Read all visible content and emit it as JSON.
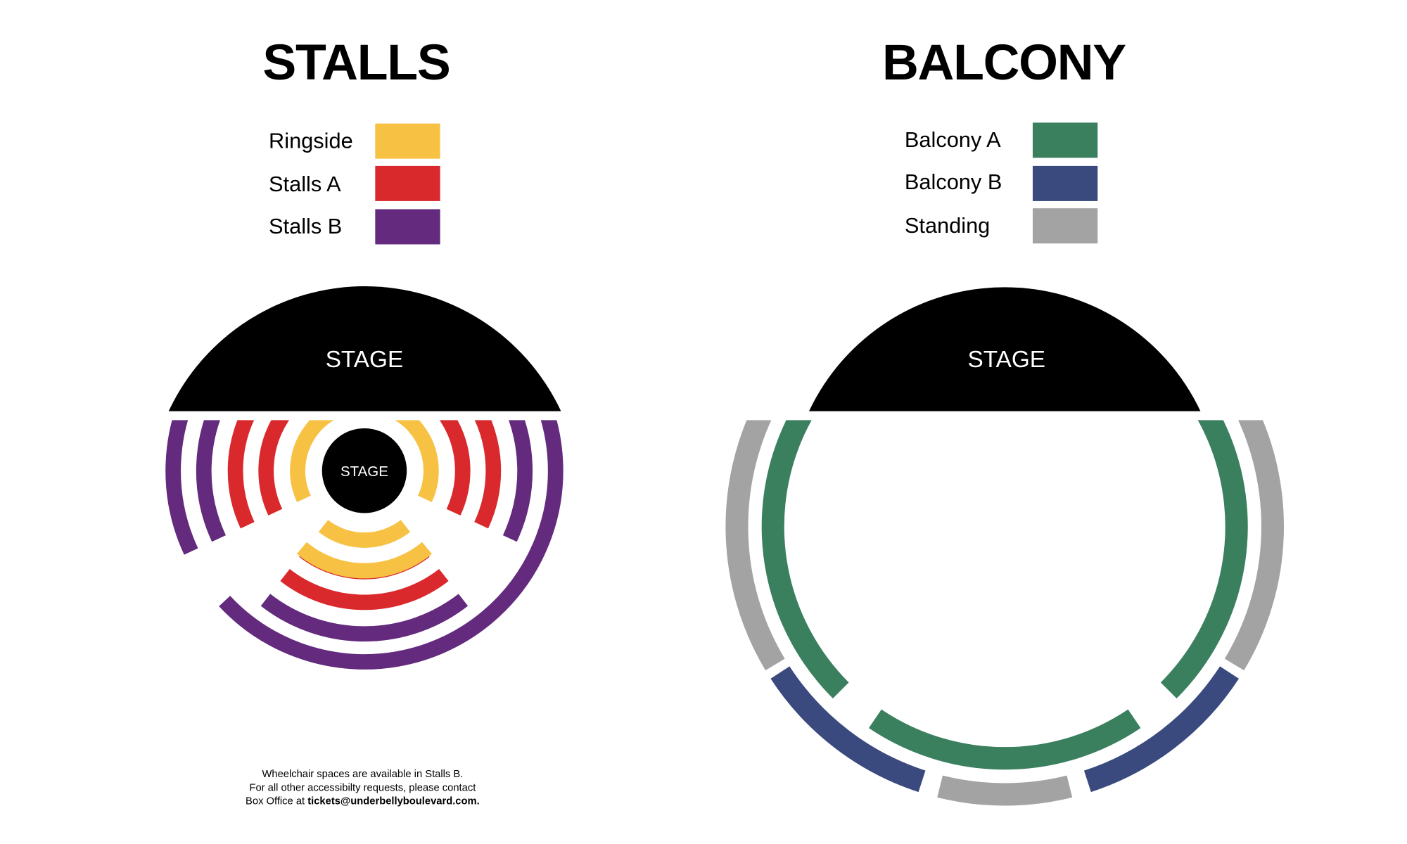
{
  "stalls": {
    "title": "STALLS",
    "stage_label": "STAGE",
    "center_stage_label": "STAGE",
    "legend": [
      {
        "label": "Ringside",
        "color": "#F7C244"
      },
      {
        "label": "Stalls A",
        "color": "#D9292C"
      },
      {
        "label": "Stalls B",
        "color": "#632A7E"
      }
    ]
  },
  "balcony": {
    "title": "BALCONY",
    "stage_label": "STAGE",
    "legend": [
      {
        "label": "Balcony A",
        "color": "#3A7F5E"
      },
      {
        "label": "Balcony B",
        "color": "#3A4A7E"
      },
      {
        "label": "Standing",
        "color": "#A3A3A3"
      }
    ]
  },
  "note": {
    "line1": "Wheelchair spaces are available in Stalls B.",
    "line2": "For all other accessibilty requests, please contact",
    "line3_prefix": "Box Office at ",
    "line3_email": "tickets@underbellyboulevard.com."
  }
}
